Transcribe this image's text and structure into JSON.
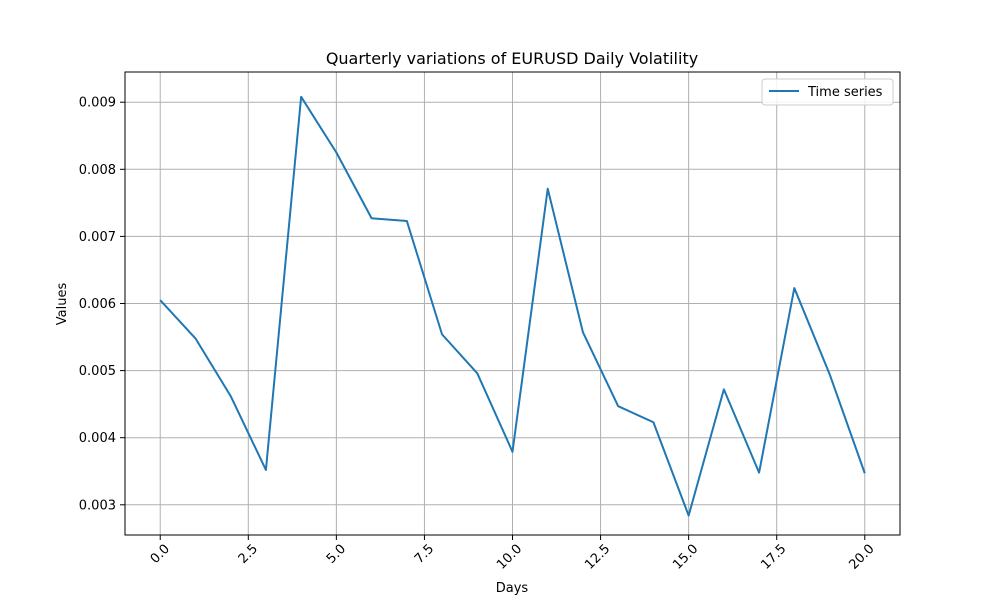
{
  "chart_data": {
    "type": "line",
    "title": "Quarterly variations of  EURUSD Daily Volatility",
    "xlabel": "Days",
    "ylabel": "Values",
    "xlim": [
      -1.0,
      21.0
    ],
    "ylim": [
      0.00255,
      0.00945
    ],
    "x_ticks": [
      0.0,
      2.5,
      5.0,
      7.5,
      10.0,
      12.5,
      15.0,
      17.5,
      20.0
    ],
    "x_tick_labels": [
      "0.0",
      "2.5",
      "5.0",
      "7.5",
      "10.0",
      "12.5",
      "15.0",
      "17.5",
      "20.0"
    ],
    "y_ticks": [
      0.003,
      0.004,
      0.005,
      0.006,
      0.007,
      0.008,
      0.009
    ],
    "y_tick_labels": [
      "0.003",
      "0.004",
      "0.005",
      "0.006",
      "0.007",
      "0.008",
      "0.009"
    ],
    "grid": true,
    "legend_position": "top-right",
    "series": [
      {
        "name": "Time series",
        "color": "#1f77b4",
        "x": [
          0,
          1,
          2,
          3,
          4,
          5,
          6,
          7,
          8,
          9,
          10,
          11,
          12,
          13,
          14,
          15,
          16,
          17,
          18,
          19,
          20
        ],
        "values": [
          0.00605,
          0.00548,
          0.00462,
          0.00352,
          0.00908,
          0.00825,
          0.00727,
          0.00723,
          0.00554,
          0.00496,
          0.00379,
          0.00771,
          0.00557,
          0.00447,
          0.00423,
          0.00284,
          0.00472,
          0.00348,
          0.00623,
          0.00495,
          0.00347
        ]
      }
    ]
  }
}
